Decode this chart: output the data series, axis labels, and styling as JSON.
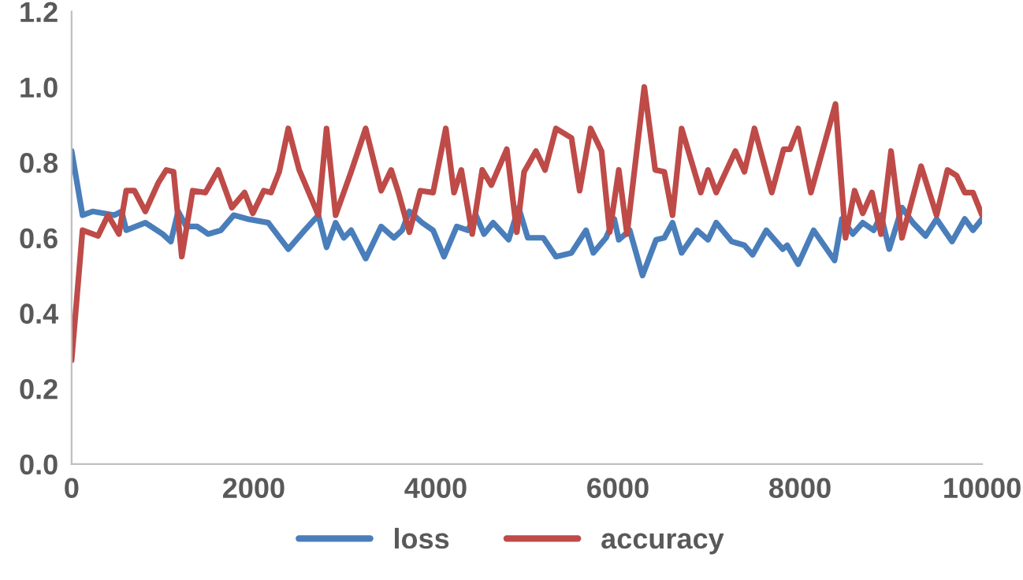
{
  "chart_data": {
    "type": "line",
    "xlim": [
      0,
      10000
    ],
    "xticks": [
      0,
      2000,
      4000,
      6000,
      8000,
      10000
    ],
    "ylim": [
      0.0,
      1.2
    ],
    "yticks": [
      {
        "value": 0,
        "label": "0.0"
      },
      {
        "value": 0.2,
        "label": "0.2"
      },
      {
        "value": 0.4,
        "label": "0.4"
      },
      {
        "value": 0.6,
        "label": "0.6"
      },
      {
        "value": 0.8,
        "label": "0.8"
      },
      {
        "value": 1.0,
        "label": "1.0"
      },
      {
        "value": 1.2,
        "label": "1.2"
      }
    ],
    "grid": false,
    "legend": "bottom",
    "marker": "none",
    "line_style": "solid",
    "series": [
      {
        "name": "loss",
        "color": "#4a7ebb",
        "x": [
          0,
          120,
          230,
          470,
          550,
          600,
          810,
          1000,
          1090,
          1170,
          1260,
          1380,
          1500,
          1640,
          1780,
          1930,
          2160,
          2380,
          2560,
          2710,
          2800,
          2900,
          2990,
          3070,
          3230,
          3400,
          3540,
          3630,
          3710,
          3850,
          3970,
          4090,
          4230,
          4350,
          4440,
          4530,
          4630,
          4800,
          4910,
          5010,
          5180,
          5320,
          5490,
          5650,
          5730,
          5870,
          5960,
          6010,
          6130,
          6270,
          6420,
          6510,
          6600,
          6700,
          6870,
          6990,
          7080,
          7250,
          7390,
          7480,
          7630,
          7810,
          7860,
          7980,
          8150,
          8380,
          8460,
          8580,
          8690,
          8810,
          8890,
          8980,
          9120,
          9240,
          9380,
          9500,
          9670,
          9810,
          9900,
          10000
        ],
        "values": [
          0.83,
          0.66,
          0.67,
          0.66,
          0.67,
          0.62,
          0.64,
          0.61,
          0.59,
          0.67,
          0.63,
          0.63,
          0.61,
          0.62,
          0.66,
          0.65,
          0.64,
          0.57,
          0.62,
          0.66,
          0.575,
          0.64,
          0.6,
          0.62,
          0.545,
          0.63,
          0.6,
          0.62,
          0.67,
          0.64,
          0.62,
          0.55,
          0.63,
          0.62,
          0.66,
          0.61,
          0.64,
          0.595,
          0.68,
          0.6,
          0.6,
          0.55,
          0.56,
          0.62,
          0.56,
          0.6,
          0.65,
          0.595,
          0.62,
          0.5,
          0.595,
          0.6,
          0.64,
          0.56,
          0.62,
          0.595,
          0.64,
          0.59,
          0.58,
          0.555,
          0.62,
          0.57,
          0.58,
          0.53,
          0.62,
          0.54,
          0.65,
          0.61,
          0.64,
          0.62,
          0.66,
          0.57,
          0.68,
          0.64,
          0.605,
          0.65,
          0.59,
          0.65,
          0.62,
          0.65
        ]
      },
      {
        "name": "accuracy",
        "color": "#be4b48",
        "x": [
          0,
          120,
          290,
          400,
          520,
          600,
          690,
          810,
          950,
          1040,
          1120,
          1210,
          1330,
          1470,
          1610,
          1760,
          1900,
          1990,
          2110,
          2190,
          2280,
          2380,
          2500,
          2640,
          2710,
          2800,
          2900,
          3070,
          3230,
          3400,
          3510,
          3590,
          3710,
          3830,
          3970,
          4110,
          4200,
          4280,
          4400,
          4510,
          4610,
          4780,
          4890,
          4970,
          5100,
          5200,
          5320,
          5490,
          5580,
          5700,
          5820,
          5910,
          6010,
          6100,
          6290,
          6410,
          6510,
          6600,
          6700,
          6910,
          6990,
          7080,
          7290,
          7390,
          7500,
          7690,
          7820,
          7890,
          7980,
          8120,
          8390,
          8500,
          8600,
          8690,
          8790,
          8890,
          9000,
          9120,
          9330,
          9500,
          9620,
          9720,
          9810,
          9900,
          10000
        ],
        "values": [
          0.275,
          0.62,
          0.605,
          0.66,
          0.61,
          0.725,
          0.725,
          0.67,
          0.745,
          0.78,
          0.775,
          0.55,
          0.725,
          0.72,
          0.78,
          0.68,
          0.72,
          0.665,
          0.725,
          0.72,
          0.775,
          0.89,
          0.78,
          0.7,
          0.66,
          0.89,
          0.66,
          0.775,
          0.89,
          0.725,
          0.78,
          0.72,
          0.615,
          0.725,
          0.72,
          0.89,
          0.72,
          0.78,
          0.61,
          0.78,
          0.74,
          0.835,
          0.615,
          0.775,
          0.83,
          0.78,
          0.89,
          0.865,
          0.725,
          0.89,
          0.83,
          0.615,
          0.78,
          0.61,
          1.0,
          0.78,
          0.775,
          0.66,
          0.89,
          0.72,
          0.78,
          0.72,
          0.83,
          0.775,
          0.89,
          0.72,
          0.835,
          0.835,
          0.89,
          0.72,
          0.955,
          0.6,
          0.725,
          0.665,
          0.72,
          0.61,
          0.83,
          0.6,
          0.79,
          0.66,
          0.78,
          0.765,
          0.72,
          0.72,
          0.66
        ]
      }
    ]
  }
}
